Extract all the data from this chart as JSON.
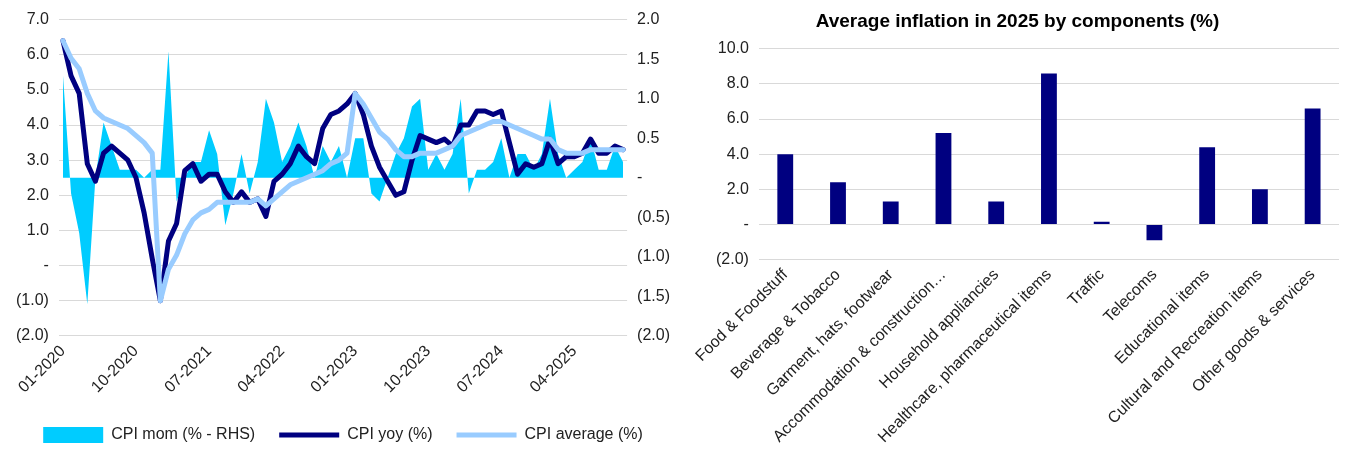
{
  "chart_data": [
    {
      "type": "line",
      "categories": [
        "01-2020",
        null,
        null,
        null,
        null,
        null,
        null,
        null,
        null,
        "10-2020",
        null,
        null,
        null,
        null,
        null,
        null,
        null,
        null,
        "07-2021",
        null,
        null,
        null,
        null,
        null,
        null,
        null,
        null,
        "04-2022",
        null,
        null,
        null,
        null,
        null,
        null,
        null,
        null,
        "01-2023",
        null,
        null,
        null,
        null,
        null,
        null,
        null,
        null,
        "10-2023",
        null,
        null,
        null,
        null,
        null,
        null,
        null,
        null,
        "07-2024",
        null,
        null,
        null,
        null,
        null,
        null,
        null,
        null,
        "04-2025",
        null,
        null,
        null,
        null,
        null,
        null
      ],
      "series": [
        {
          "name": "CPI mom (% - RHS)",
          "type": "area",
          "axis": "y2",
          "color": "#00ccff",
          "values": [
            1.3,
            -0.2,
            -0.7,
            -1.6,
            0.0,
            0.7,
            0.4,
            0.1,
            0.1,
            0.1,
            0.0,
            0.1,
            0.1,
            1.6,
            -0.3,
            0.0,
            0.2,
            0.2,
            0.6,
            0.3,
            -0.6,
            -0.2,
            0.3,
            -0.2,
            0.2,
            1.0,
            0.7,
            0.2,
            0.4,
            0.7,
            0.4,
            0.0,
            0.4,
            0.2,
            0.4,
            0.0,
            0.5,
            0.5,
            -0.2,
            -0.3,
            0.0,
            0.3,
            0.5,
            0.9,
            1.0,
            0.1,
            0.3,
            0.1,
            0.3,
            1.0,
            -0.2,
            0.1,
            0.1,
            0.2,
            0.5,
            0.0,
            0.3,
            0.3,
            0.1,
            0.3,
            1.0,
            0.3,
            0.0,
            0.1,
            0.2,
            0.5,
            0.1,
            0.1,
            0.4,
            0.2
          ]
        },
        {
          "name": "CPI yoy (%)",
          "type": "line",
          "color": "#000080",
          "values": [
            6.4,
            5.4,
            4.9,
            2.9,
            2.4,
            3.2,
            3.4,
            3.2,
            3.0,
            2.5,
            1.5,
            0.2,
            -1.0,
            0.7,
            1.2,
            2.7,
            2.9,
            2.4,
            2.6,
            2.6,
            2.1,
            1.8,
            2.1,
            1.8,
            1.9,
            1.4,
            2.4,
            2.6,
            2.9,
            3.4,
            3.1,
            2.9,
            3.9,
            4.3,
            4.4,
            4.6,
            4.9,
            4.3,
            3.4,
            2.8,
            2.4,
            2.0,
            2.1,
            3.0,
            3.7,
            3.6,
            3.5,
            3.6,
            3.4,
            4.0,
            4.0,
            4.4,
            4.4,
            4.3,
            4.4,
            3.5,
            2.6,
            2.9,
            2.8,
            2.9,
            3.6,
            2.9,
            3.1,
            3.1,
            3.2,
            3.6,
            3.2,
            3.2,
            3.4,
            3.3
          ]
        },
        {
          "name": "CPI average (%)",
          "type": "line",
          "color": "#99ccff",
          "values": [
            6.4,
            5.9,
            5.6,
            4.9,
            4.4,
            4.2,
            4.1,
            4.0,
            3.9,
            3.7,
            3.5,
            3.2,
            -1.0,
            -0.1,
            0.3,
            0.9,
            1.3,
            1.5,
            1.6,
            1.8,
            1.8,
            1.8,
            1.8,
            1.8,
            1.9,
            1.7,
            1.9,
            2.1,
            2.3,
            2.4,
            2.5,
            2.6,
            2.7,
            2.9,
            3.0,
            3.2,
            4.9,
            4.6,
            4.2,
            3.8,
            3.6,
            3.3,
            3.1,
            3.1,
            3.2,
            3.2,
            3.2,
            3.3,
            3.4,
            3.7,
            3.8,
            3.9,
            4.0,
            4.1,
            4.1,
            4.0,
            3.9,
            3.8,
            3.7,
            3.6,
            3.6,
            3.3,
            3.2,
            3.2,
            3.2,
            3.3,
            3.3,
            3.3,
            3.3,
            3.3
          ]
        }
      ],
      "ylim": [
        -2,
        7
      ],
      "yticks": [
        {
          "value": -2,
          "label": "(2.0)"
        },
        {
          "value": -1,
          "label": "(1.0)"
        },
        {
          "value": 0,
          "label": "-"
        },
        {
          "value": 1,
          "label": "1.0"
        },
        {
          "value": 2,
          "label": "2.0"
        },
        {
          "value": 3,
          "label": "3.0"
        },
        {
          "value": 4,
          "label": "4.0"
        },
        {
          "value": 5,
          "label": "5.0"
        },
        {
          "value": 6,
          "label": "6.0"
        },
        {
          "value": 7,
          "label": "7.0"
        }
      ],
      "y2lim": [
        -2,
        2
      ],
      "y2ticks": [
        {
          "value": -2,
          "label": "(2.0)"
        },
        {
          "value": -1.5,
          "label": "(1.5)"
        },
        {
          "value": -1,
          "label": "(1.0)"
        },
        {
          "value": -0.5,
          "label": "(0.5)"
        },
        {
          "value": 0,
          "label": "-"
        },
        {
          "value": 0.5,
          "label": "0.5"
        },
        {
          "value": 1,
          "label": "1.0"
        },
        {
          "value": 1.5,
          "label": "1.5"
        },
        {
          "value": 2,
          "label": "2.0"
        }
      ],
      "grid": "y",
      "legend": "bottom"
    },
    {
      "type": "bar",
      "title": "Average inflation in 2025 by components (%)",
      "categories": [
        "Food & Foodstuff",
        "Beverage & Tobacco",
        "Garment, hats, footwear",
        "Accommodation & construction…",
        "Household appliancies",
        "Healthcare, pharmaceutical items",
        "Traffic",
        "Telecoms",
        "Educational items",
        "Cultural and Recreation items",
        "Other goods & services"
      ],
      "values": [
        4.0,
        2.4,
        1.3,
        5.2,
        1.3,
        8.6,
        0.15,
        -0.9,
        4.4,
        2.0,
        6.6
      ],
      "color": "#000080",
      "ylim": [
        -2,
        10
      ],
      "yticks": [
        {
          "value": -2,
          "label": "(2.0)"
        },
        {
          "value": 0,
          "label": "-"
        },
        {
          "value": 2,
          "label": "2.0"
        },
        {
          "value": 4,
          "label": "4.0"
        },
        {
          "value": 6,
          "label": "6.0"
        },
        {
          "value": 8,
          "label": "8.0"
        },
        {
          "value": 10,
          "label": "10.0"
        }
      ],
      "grid": "y"
    }
  ]
}
